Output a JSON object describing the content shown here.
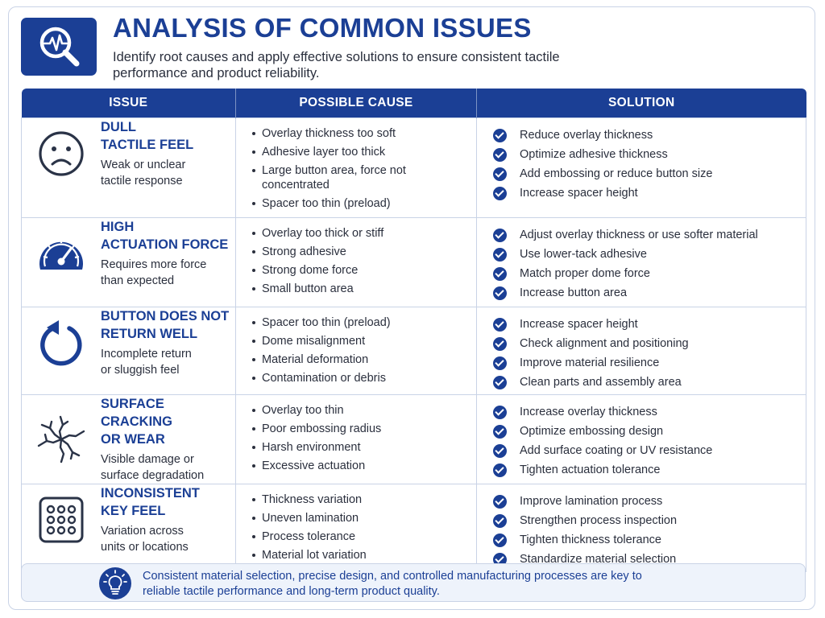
{
  "header": {
    "title": "ANALYSIS OF COMMON ISSUES",
    "subtitle": "Identify root causes and apply effective solutions to ensure consistent tactile performance and product reliability."
  },
  "table": {
    "columns": [
      "ISSUE",
      "POSSIBLE CAUSE",
      "SOLUTION"
    ],
    "rows": [
      {
        "icon": "sad-face-icon",
        "name_lines": [
          "DULL",
          "TACTILE FEEL"
        ],
        "desc_lines": [
          "Weak or unclear",
          "tactile response"
        ],
        "causes": [
          "Overlay thickness too soft",
          "Adhesive layer too thick",
          "Large button area, force not concentrated",
          "Spacer too thin (preload)"
        ],
        "solutions": [
          "Reduce overlay thickness",
          "Optimize adhesive thickness",
          "Add embossing or reduce button size",
          "Increase spacer height"
        ]
      },
      {
        "icon": "gauge-icon",
        "name_lines": [
          "HIGH",
          "ACTUATION FORCE"
        ],
        "desc_lines": [
          "Requires more force",
          "than expected"
        ],
        "causes": [
          "Overlay too thick or stiff",
          "Strong adhesive",
          "Strong dome force",
          "Small button area"
        ],
        "solutions": [
          "Adjust overlay thickness or use softer material",
          "Use lower-tack adhesive",
          "Match proper dome force",
          "Increase button area"
        ]
      },
      {
        "icon": "return-arrow-icon",
        "name_lines": [
          "BUTTON DOES NOT",
          "RETURN WELL"
        ],
        "desc_lines": [
          "Incomplete return",
          "or sluggish feel"
        ],
        "causes": [
          "Spacer too thin (preload)",
          "Dome misalignment",
          "Material deformation",
          "Contamination or debris"
        ],
        "solutions": [
          "Increase spacer height",
          "Check alignment and positioning",
          "Improve material resilience",
          "Clean parts and assembly area"
        ]
      },
      {
        "icon": "crack-icon",
        "name_lines": [
          "SURFACE CRACKING",
          "OR WEAR"
        ],
        "desc_lines": [
          "Visible damage or",
          "surface degradation"
        ],
        "causes": [
          "Overlay too thin",
          "Poor embossing radius",
          "Harsh environment",
          "Excessive actuation"
        ],
        "solutions": [
          "Increase overlay thickness",
          "Optimize embossing design",
          "Add surface coating or UV resistance",
          "Tighten actuation tolerance"
        ]
      },
      {
        "icon": "keypad-icon",
        "name_lines": [
          "INCONSISTENT",
          "KEY FEEL"
        ],
        "desc_lines": [
          "Variation across",
          "units or locations"
        ],
        "causes": [
          "Thickness variation",
          "Uneven lamination",
          "Process tolerance",
          "Material lot variation"
        ],
        "solutions": [
          "Improve lamination process",
          "Strengthen process inspection",
          "Tighten thickness tolerance",
          "Standardize material selection"
        ]
      }
    ]
  },
  "footer": {
    "icon": "lightbulb-icon",
    "text": "Consistent material selection, precise design, and controlled manufacturing processes are key to reliable tactile performance and long-term product quality."
  },
  "colors": {
    "brand": "#1b3f95",
    "border": "#c9d3e6",
    "footer_bg": "#eef3fb"
  }
}
